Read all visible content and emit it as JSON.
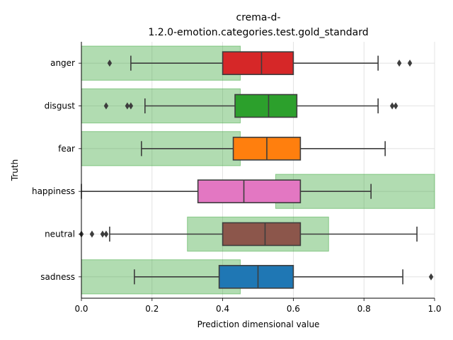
{
  "chart_data": {
    "type": "boxplot",
    "orientation": "horizontal",
    "title_lines": [
      "crema-d-",
      "1.2.0-emotion.categories.test.gold_standard"
    ],
    "xlabel": "Prediction dimensional value",
    "ylabel": "Truth",
    "xlim": [
      0.0,
      1.0
    ],
    "xticks": [
      "0.0",
      "0.2",
      "0.4",
      "0.6",
      "0.8",
      "1.0"
    ],
    "xtick_values": [
      0.0,
      0.2,
      0.4,
      0.6,
      0.8,
      1.0
    ],
    "grid": "vertical",
    "categories": [
      "anger",
      "disgust",
      "fear",
      "happiness",
      "neutral",
      "sadness"
    ],
    "gold_standard_ranges": [
      [
        0.0,
        0.45
      ],
      [
        0.0,
        0.45
      ],
      [
        0.0,
        0.45
      ],
      [
        0.55,
        1.0
      ],
      [
        0.3,
        0.7
      ],
      [
        0.0,
        0.45
      ]
    ],
    "boxes": [
      {
        "category": "anger",
        "color": "#d62728",
        "whisker_low": 0.14,
        "q1": 0.4,
        "median": 0.51,
        "q3": 0.6,
        "whisker_high": 0.84,
        "outliers": [
          0.08,
          0.9,
          0.93
        ]
      },
      {
        "category": "disgust",
        "color": "#2ca02c",
        "whisker_low": 0.18,
        "q1": 0.435,
        "median": 0.53,
        "q3": 0.61,
        "whisker_high": 0.84,
        "outliers": [
          0.07,
          0.13,
          0.14,
          0.88,
          0.89
        ]
      },
      {
        "category": "fear",
        "color": "#ff7f0e",
        "whisker_low": 0.17,
        "q1": 0.43,
        "median": 0.525,
        "q3": 0.62,
        "whisker_high": 0.86,
        "outliers": []
      },
      {
        "category": "happiness",
        "color": "#e377c2",
        "whisker_low": 0.0,
        "q1": 0.33,
        "median": 0.46,
        "q3": 0.62,
        "whisker_high": 0.82,
        "outliers": []
      },
      {
        "category": "neutral",
        "color": "#8c564b",
        "whisker_low": 0.08,
        "q1": 0.4,
        "median": 0.52,
        "q3": 0.62,
        "whisker_high": 0.95,
        "outliers": [
          0.0,
          0.03,
          0.06,
          0.07
        ]
      },
      {
        "category": "sadness",
        "color": "#1f77b4",
        "whisker_low": 0.15,
        "q1": 0.39,
        "median": 0.5,
        "q3": 0.6,
        "whisker_high": 0.91,
        "outliers": [
          0.99
        ]
      }
    ],
    "colors": {
      "gold_fill": "#2ca02c",
      "line": "#3d3d3d",
      "grid": "#dddddd"
    }
  }
}
